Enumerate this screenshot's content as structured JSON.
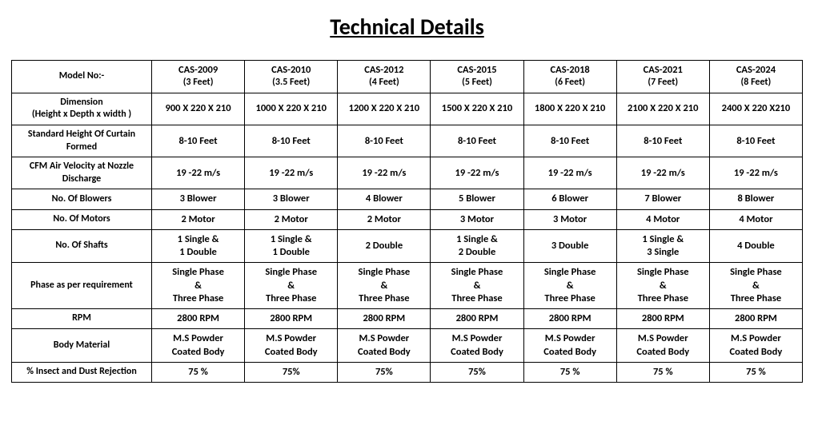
{
  "title": "Technical Details",
  "table": {
    "header_label": "Model No:-",
    "models": [
      {
        "code": "CAS-2009",
        "size": "(3 Feet)"
      },
      {
        "code": "CAS-2010",
        "size": "(3.5 Feet)"
      },
      {
        "code": "CAS-2012",
        "size": "(4 Feet)"
      },
      {
        "code": "CAS-2015",
        "size": "(5 Feet)"
      },
      {
        "code": "CAS-2018",
        "size": "(6 Feet)"
      },
      {
        "code": "CAS-2021",
        "size": "(7 Feet)"
      },
      {
        "code": "CAS-2024",
        "size": "(8 Feet)"
      }
    ],
    "rows": [
      {
        "label": "Dimension\n(Height x Depth x width )",
        "cells": [
          "900 X 220 X 210",
          "1000 X 220 X 210",
          "1200 X 220 X 210",
          "1500 X 220 X 210",
          "1800 X 220 X 210",
          "2100 X 220 X 210",
          "2400 X 220 X210"
        ]
      },
      {
        "label": "Standard Height Of Curtain Formed",
        "cells": [
          "8-10 Feet",
          "8-10 Feet",
          "8-10 Feet",
          "8-10 Feet",
          "8-10 Feet",
          "8-10 Feet",
          "8-10 Feet"
        ]
      },
      {
        "label": "CFM Air Velocity at Nozzle Discharge",
        "cells": [
          "19 -22 m/s",
          "19 -22 m/s",
          "19 -22 m/s",
          "19 -22 m/s",
          "19 -22 m/s",
          "19 -22 m/s",
          "19 -22 m/s"
        ]
      },
      {
        "label": "No. Of Blowers",
        "cells": [
          "3 Blower",
          "3 Blower",
          "4 Blower",
          "5 Blower",
          "6 Blower",
          "7 Blower",
          "8 Blower"
        ]
      },
      {
        "label": "No. Of Motors",
        "cells": [
          "2 Motor",
          "2 Motor",
          "2 Motor",
          "3 Motor",
          "3 Motor",
          "4 Motor",
          "4 Motor"
        ]
      },
      {
        "label": "No. Of Shafts",
        "cells": [
          "1 Single &\n1 Double",
          "1 Single &\n1 Double",
          "2 Double",
          "1 Single &\n2 Double",
          "3 Double",
          "1 Single &\n3 Single",
          "4 Double"
        ]
      },
      {
        "label": "Phase as per requirement",
        "cells": [
          "Single Phase\n&\nThree Phase",
          "Single Phase\n&\nThree Phase",
          "Single Phase\n&\nThree Phase",
          "Single Phase\n&\nThree Phase",
          "Single Phase\n&\nThree Phase",
          "Single Phase\n&\nThree Phase",
          "Single Phase\n&\nThree Phase"
        ]
      },
      {
        "label": "RPM",
        "cells": [
          "2800 RPM",
          "2800 RPM",
          "2800 RPM",
          "2800 RPM",
          "2800 RPM",
          "2800 RPM",
          "2800 RPM"
        ]
      },
      {
        "label": "Body Material",
        "cells": [
          "M.S Powder\nCoated Body",
          "M.S Powder\nCoated Body",
          "M.S Powder\nCoated Body",
          "M.S Powder\nCoated Body",
          "M.S Powder\nCoated Body",
          "M.S Powder\nCoated Body",
          "M.S Powder\nCoated Body"
        ]
      },
      {
        "label": "% Insect and Dust Rejection",
        "cells": [
          "75 %",
          "75%",
          "75%",
          "75%",
          "75 %",
          "75 %",
          "75 %"
        ]
      }
    ]
  }
}
